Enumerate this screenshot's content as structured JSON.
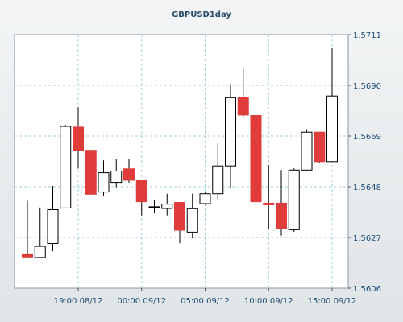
{
  "chart_data": {
    "type": "candlestick",
    "title": "GBPUSD1day",
    "y_range": [
      1.5606,
      1.5711
    ],
    "y_ticks": [
      "1.5711",
      "1.5690",
      "1.5669",
      "1.5648",
      "1.5627",
      "1.5606"
    ],
    "x_labels": [
      {
        "label": "19:00 08/12",
        "index": 4
      },
      {
        "label": "00:00 09/12",
        "index": 9
      },
      {
        "label": "05:00 09/12",
        "index": 14
      },
      {
        "label": "10:00 09/12",
        "index": 19
      },
      {
        "label": "15:00 09/12",
        "index": 24
      }
    ],
    "grid": true,
    "colors": {
      "bull_fill": "#ffffff",
      "bear_fill": "#e03c3c",
      "outline": "#000000",
      "grid": "#9ed0d8",
      "axis_text": "#1f4e79"
    },
    "candles": [
      {
        "open": 1.56202,
        "high": 1.56422,
        "low": 1.56187,
        "close": 1.56189
      },
      {
        "open": 1.56187,
        "high": 1.56394,
        "low": 1.56184,
        "close": 1.56233
      },
      {
        "open": 1.56245,
        "high": 1.56483,
        "low": 1.56213,
        "close": 1.56385
      },
      {
        "open": 1.56392,
        "high": 1.56736,
        "low": 1.56392,
        "close": 1.5673
      },
      {
        "open": 1.56727,
        "high": 1.56809,
        "low": 1.56555,
        "close": 1.56631
      },
      {
        "open": 1.56631,
        "high": 1.56631,
        "low": 1.56449,
        "close": 1.56449
      },
      {
        "open": 1.56458,
        "high": 1.56589,
        "low": 1.56443,
        "close": 1.56538
      },
      {
        "open": 1.56498,
        "high": 1.56594,
        "low": 1.56478,
        "close": 1.56545
      },
      {
        "open": 1.56554,
        "high": 1.56594,
        "low": 1.56497,
        "close": 1.56507
      },
      {
        "open": 1.56507,
        "high": 1.56507,
        "low": 1.56361,
        "close": 1.56418
      },
      {
        "open": 1.56397,
        "high": 1.56427,
        "low": 1.56371,
        "close": 1.56397
      },
      {
        "open": 1.5639,
        "high": 1.56451,
        "low": 1.56361,
        "close": 1.56408
      },
      {
        "open": 1.56415,
        "high": 1.56415,
        "low": 1.56246,
        "close": 1.563
      },
      {
        "open": 1.56292,
        "high": 1.56451,
        "low": 1.56266,
        "close": 1.56389
      },
      {
        "open": 1.5641,
        "high": 1.56456,
        "low": 1.56405,
        "close": 1.56451
      },
      {
        "open": 1.56451,
        "high": 1.56661,
        "low": 1.56427,
        "close": 1.56566
      },
      {
        "open": 1.56566,
        "high": 1.56904,
        "low": 1.56477,
        "close": 1.56849
      },
      {
        "open": 1.56849,
        "high": 1.56975,
        "low": 1.56768,
        "close": 1.56777
      },
      {
        "open": 1.56775,
        "high": 1.56775,
        "low": 1.56398,
        "close": 1.56418
      },
      {
        "open": 1.56412,
        "high": 1.5657,
        "low": 1.56305,
        "close": 1.56405
      },
      {
        "open": 1.56412,
        "high": 1.56549,
        "low": 1.56278,
        "close": 1.56307
      },
      {
        "open": 1.56302,
        "high": 1.56556,
        "low": 1.56293,
        "close": 1.56549
      },
      {
        "open": 1.56549,
        "high": 1.56718,
        "low": 1.56544,
        "close": 1.56706
      },
      {
        "open": 1.56706,
        "high": 1.56707,
        "low": 1.56577,
        "close": 1.56584
      },
      {
        "open": 1.56584,
        "high": 1.57053,
        "low": 1.56584,
        "close": 1.56856
      }
    ]
  }
}
